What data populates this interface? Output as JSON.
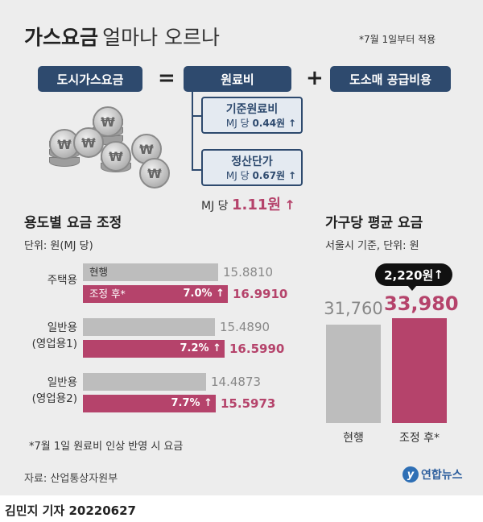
{
  "header": {
    "title_bold": "가스요금",
    "title_light": "얼마나 오르나",
    "note": "*7월 1일부터 적용"
  },
  "formula": {
    "left": "도시가스요금",
    "eq": "=",
    "middle": "원료비",
    "plus": "+",
    "right": "도소매 공급비용",
    "sub1_title": "기준원료비",
    "sub1_unit": "MJ 당",
    "sub1_value": "0.44원",
    "sub2_title": "정산단가",
    "sub2_unit": "MJ 당",
    "sub2_value": "0.67원",
    "arrow": "↑",
    "total_unit": "MJ 당",
    "total_value": "1.11원"
  },
  "coin_symbol": "₩",
  "left_chart": {
    "title": "용도별 요금 조정",
    "unit": "단위: 원(MJ 당)",
    "label_current": "현행",
    "label_adjusted": "조정 후*",
    "footnote": "*7월 1일 원료비 인상 반영 시 요금"
  },
  "right_chart": {
    "title": "가구당 평균 요금",
    "unit": "서울시 기준, 단위: 원",
    "badge": "2,220원",
    "badge_arrow": "↑"
  },
  "chart_data": [
    {
      "type": "bar",
      "orientation": "horizontal",
      "title": "용도별 요금 조정",
      "unit": "원(MJ 당)",
      "categories": [
        "주택용",
        "일반용(영업용1)",
        "일반용(영업용2)"
      ],
      "category_lines": [
        [
          "주택용"
        ],
        [
          "일반용",
          "(영업용1)"
        ],
        [
          "일반용",
          "(영업용2)"
        ]
      ],
      "series": [
        {
          "name": "현행",
          "values": [
            15.881,
            15.489,
            14.4873
          ],
          "labels": [
            "15.8810",
            "15.4890",
            "14.4873"
          ]
        },
        {
          "name": "조정 후*",
          "values": [
            16.991,
            16.599,
            15.5973
          ],
          "labels": [
            "16.9910",
            "16.5990",
            "15.5973"
          ]
        }
      ],
      "change_pct": [
        "7.0%",
        "7.2%",
        "7.7%"
      ],
      "colors": {
        "current": "#bdbdbd",
        "adjusted": "#b5436b"
      }
    },
    {
      "type": "bar",
      "orientation": "vertical",
      "title": "가구당 평균 요금",
      "unit": "원",
      "categories": [
        "현행",
        "조정 후*"
      ],
      "values": [
        31760,
        33980
      ],
      "labels": [
        "31,760",
        "33,980"
      ],
      "change_label": "2,220원",
      "colors": {
        "current": "#bdbdbd",
        "adjusted": "#b5436b"
      }
    }
  ],
  "footer": {
    "source": "자료: 산업통상자원부",
    "logo_mark": "y",
    "logo_text": "연합뉴스",
    "byline": "김민지 기자  20220627"
  }
}
